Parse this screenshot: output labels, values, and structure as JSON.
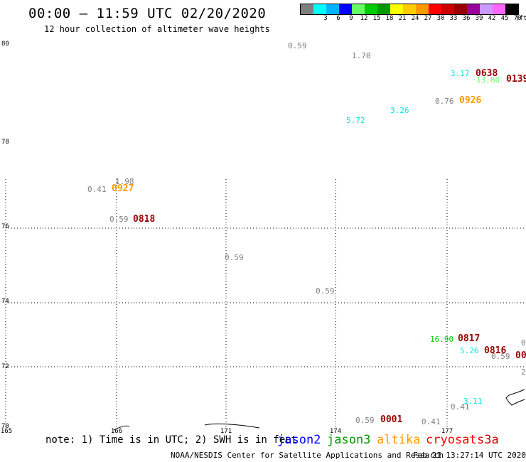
{
  "header": {
    "title": "00:00 – 11:59 UTC 02/20/2020",
    "subtitle": "12 hour collection of altimeter wave heights"
  },
  "legend": {
    "colorbar": [
      {
        "label": "",
        "color": "#7f7f7f"
      },
      {
        "label": "3",
        "color": "#00ffff"
      },
      {
        "label": "6",
        "color": "#00b2ff"
      },
      {
        "label": "9",
        "color": "#0000ff"
      },
      {
        "label": "12",
        "color": "#66ff66"
      },
      {
        "label": "15",
        "color": "#00cc00"
      },
      {
        "label": "18",
        "color": "#009900"
      },
      {
        "label": "21",
        "color": "#ffff00"
      },
      {
        "label": "24",
        "color": "#ffcc00"
      },
      {
        "label": "27",
        "color": "#ff9900"
      },
      {
        "label": "30",
        "color": "#ff0000"
      },
      {
        "label": "33",
        "color": "#cc0000"
      },
      {
        "label": "36",
        "color": "#990000"
      },
      {
        "label": "39",
        "color": "#990099"
      },
      {
        "label": "42",
        "color": "#cc99ff"
      },
      {
        "label": "45",
        "color": "#ff66ff"
      },
      {
        "label": "70",
        "color": "#000000"
      }
    ],
    "unit": "(ft)"
  },
  "axes": {
    "lat_labels": [
      "80",
      "78",
      "76",
      "74",
      "72",
      "70"
    ],
    "lon_labels": [
      "165",
      "166",
      "171",
      "174",
      "177"
    ]
  },
  "observations": [
    {
      "text": "0.59",
      "color": "#7f7f7f"
    },
    {
      "text": "1.70",
      "color": "#7f7f7f"
    },
    {
      "text": "3.17",
      "color": "#00e5e5"
    },
    {
      "text": "13.80",
      "color": "#66ff66"
    },
    {
      "text": "0.76",
      "color": "#7f7f7f"
    },
    {
      "text": "3.26",
      "color": "#00e5e5"
    },
    {
      "text": "5.72",
      "color": "#00e5e5"
    },
    {
      "text": "1.98",
      "color": "#7f7f7f"
    },
    {
      "text": "0.41",
      "color": "#7f7f7f"
    },
    {
      "text": "0.59",
      "color": "#7f7f7f"
    },
    {
      "text": "0.59",
      "color": "#7f7f7f"
    },
    {
      "text": "0.59",
      "color": "#7f7f7f"
    },
    {
      "text": "16.90",
      "color": "#00cc00"
    },
    {
      "text": "5.26",
      "color": "#00e5e5"
    },
    {
      "text": "0.59",
      "color": "#7f7f7f"
    },
    {
      "text": "0",
      "color": "#7f7f7f"
    },
    {
      "text": "2",
      "color": "#7f7f7f"
    },
    {
      "text": "3.11",
      "color": "#00e5e5"
    },
    {
      "text": "0.41",
      "color": "#7f7f7f"
    },
    {
      "text": "0.59",
      "color": "#7f7f7f"
    },
    {
      "text": "0.41",
      "color": "#7f7f7f"
    }
  ],
  "time_labels": [
    {
      "text": "0638",
      "color": "#990000"
    },
    {
      "text": "0139",
      "color": "#990000"
    },
    {
      "text": "0926",
      "color": "#ff9900"
    },
    {
      "text": "0927",
      "color": "#ff9900"
    },
    {
      "text": "0818",
      "color": "#990000"
    },
    {
      "text": "0817",
      "color": "#990000"
    },
    {
      "text": "0816",
      "color": "#990000"
    },
    {
      "text": "00",
      "color": "#990000"
    },
    {
      "text": "0001",
      "color": "#990000"
    }
  ],
  "footer": {
    "note": "note: 1) Time is in UTC; 2) SWH is in feet",
    "satellites": [
      {
        "name": "jason2",
        "color": "#0000ff"
      },
      {
        "name": "jason3",
        "color": "#009900"
      },
      {
        "name": "altika",
        "color": "#ff9900"
      },
      {
        "name": "cryosat",
        "color": "#ff0000"
      },
      {
        "name": "s3a",
        "color": "#cc0000"
      }
    ],
    "credit": "NOAA/NESDIS Center for Satellite Applications and Research",
    "timestamp": "Feb 21 13:27:14 UTC 2020"
  }
}
